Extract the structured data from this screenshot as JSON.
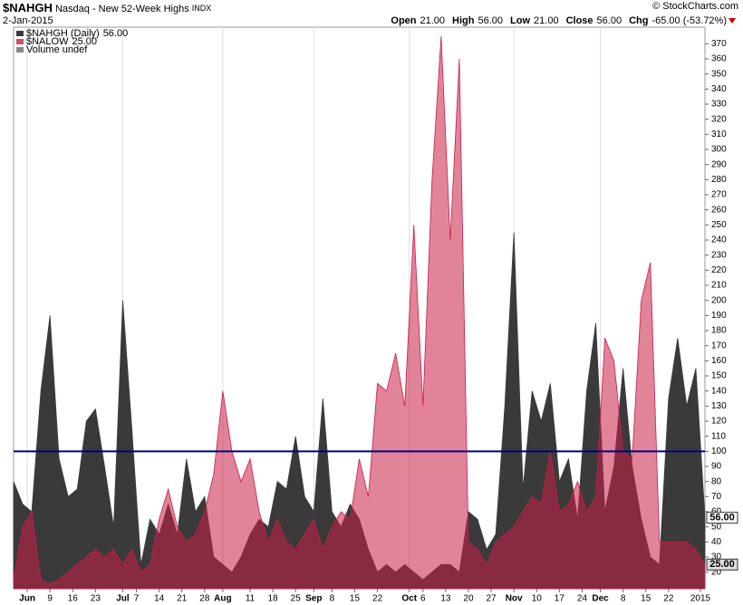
{
  "chart_data": {
    "type": "area",
    "title": "$NAHGH",
    "subtitle": "Nasdaq - New 52-Week Highs",
    "exchange": "INDX",
    "date": "2-Jan-2015",
    "source": "© StockCharts.com",
    "quote": [
      {
        "label": "Open",
        "value": "21.00"
      },
      {
        "label": "High",
        "value": "56.00"
      },
      {
        "label": "Low",
        "value": "21.00"
      },
      {
        "label": "Close",
        "value": "56.00"
      },
      {
        "label": "Chg",
        "value": "-65.00 (-53.72%)"
      }
    ],
    "volume_label": "Volume undef",
    "x": [
      0,
      2,
      4,
      6,
      8,
      10,
      12,
      14,
      16,
      18,
      20,
      22,
      24,
      26,
      28,
      30,
      32,
      34,
      36,
      38,
      40,
      42,
      44,
      46,
      48,
      50,
      52,
      54,
      56,
      58,
      60,
      62,
      64,
      66,
      68,
      70,
      72,
      74,
      76,
      78,
      80,
      82,
      84,
      86,
      88,
      90,
      92,
      94,
      96,
      98,
      100,
      102,
      104,
      106,
      108,
      110,
      112,
      114,
      116,
      118,
      120,
      122,
      124,
      126,
      128,
      130,
      132,
      134,
      136,
      138,
      140,
      142,
      144,
      146,
      148,
      150,
      152
    ],
    "series": [
      {
        "name": "$NAHGH (Daily)",
        "last": "56.00",
        "color": "#3a3a3a",
        "opacity": 1,
        "values": [
          80,
          65,
          60,
          140,
          190,
          95,
          70,
          75,
          120,
          128,
          90,
          50,
          200,
          115,
          25,
          55,
          45,
          65,
          45,
          95,
          60,
          70,
          30,
          25,
          20,
          30,
          45,
          55,
          50,
          80,
          75,
          110,
          70,
          60,
          135,
          60,
          50,
          65,
          55,
          35,
          20,
          25,
          20,
          25,
          20,
          15,
          20,
          25,
          25,
          20,
          60,
          55,
          35,
          45,
          130,
          245,
          75,
          140,
          120,
          145,
          80,
          95,
          55,
          140,
          185,
          60,
          90,
          155,
          90,
          55,
          30,
          25,
          135,
          175,
          130,
          155,
          56
        ]
      },
      {
        "name": "$NALOW",
        "last": "25.00",
        "color": "#c81e46",
        "opacity": 0.55,
        "values": [
          15,
          50,
          60,
          15,
          12,
          15,
          20,
          25,
          30,
          35,
          30,
          35,
          25,
          35,
          20,
          25,
          55,
          75,
          50,
          40,
          45,
          60,
          85,
          140,
          100,
          80,
          95,
          60,
          40,
          55,
          40,
          35,
          45,
          55,
          35,
          50,
          60,
          55,
          95,
          70,
          145,
          140,
          165,
          130,
          250,
          130,
          280,
          375,
          240,
          360,
          40,
          35,
          25,
          40,
          45,
          50,
          60,
          70,
          65,
          100,
          60,
          65,
          80,
          60,
          70,
          175,
          160,
          100,
          95,
          200,
          225,
          40,
          40,
          40,
          40,
          35,
          25
        ]
      }
    ],
    "reference_line": {
      "value": 100,
      "color": "#000080"
    },
    "xlim": [
      0,
      152
    ],
    "ylim": [
      9,
      381
    ],
    "xticks": [
      {
        "value": 3,
        "label": "Jun"
      },
      {
        "value": 8,
        "label": "9"
      },
      {
        "value": 13,
        "label": "16"
      },
      {
        "value": 18,
        "label": "23"
      },
      {
        "value": 24,
        "label": "Jul"
      },
      {
        "value": 27,
        "label": "7"
      },
      {
        "value": 32,
        "label": "14"
      },
      {
        "value": 37,
        "label": "21"
      },
      {
        "value": 42,
        "label": "28"
      },
      {
        "value": 46,
        "label": "Aug"
      },
      {
        "value": 52,
        "label": "11"
      },
      {
        "value": 57,
        "label": "18"
      },
      {
        "value": 62,
        "label": "25"
      },
      {
        "value": 66,
        "label": "Sep"
      },
      {
        "value": 70,
        "label": "8"
      },
      {
        "value": 75,
        "label": "15"
      },
      {
        "value": 80,
        "label": "22"
      },
      {
        "value": 87,
        "label": "Oct"
      },
      {
        "value": 90,
        "label": "6"
      },
      {
        "value": 95,
        "label": "13"
      },
      {
        "value": 100,
        "label": "20"
      },
      {
        "value": 105,
        "label": "27"
      },
      {
        "value": 110,
        "label": "Nov"
      },
      {
        "value": 115,
        "label": "10"
      },
      {
        "value": 120,
        "label": "17"
      },
      {
        "value": 125,
        "label": "24"
      },
      {
        "value": 129,
        "label": "Dec"
      },
      {
        "value": 134,
        "label": "8"
      },
      {
        "value": 139,
        "label": "15"
      },
      {
        "value": 144,
        "label": "22"
      },
      {
        "value": 151,
        "label": "2015"
      }
    ],
    "yticks": [
      20,
      30,
      40,
      50,
      60,
      70,
      80,
      90,
      100,
      110,
      120,
      130,
      140,
      150,
      160,
      170,
      180,
      190,
      200,
      210,
      220,
      230,
      240,
      250,
      260,
      270,
      280,
      290,
      300,
      310,
      320,
      330,
      340,
      350,
      360,
      370
    ],
    "grid": true
  }
}
